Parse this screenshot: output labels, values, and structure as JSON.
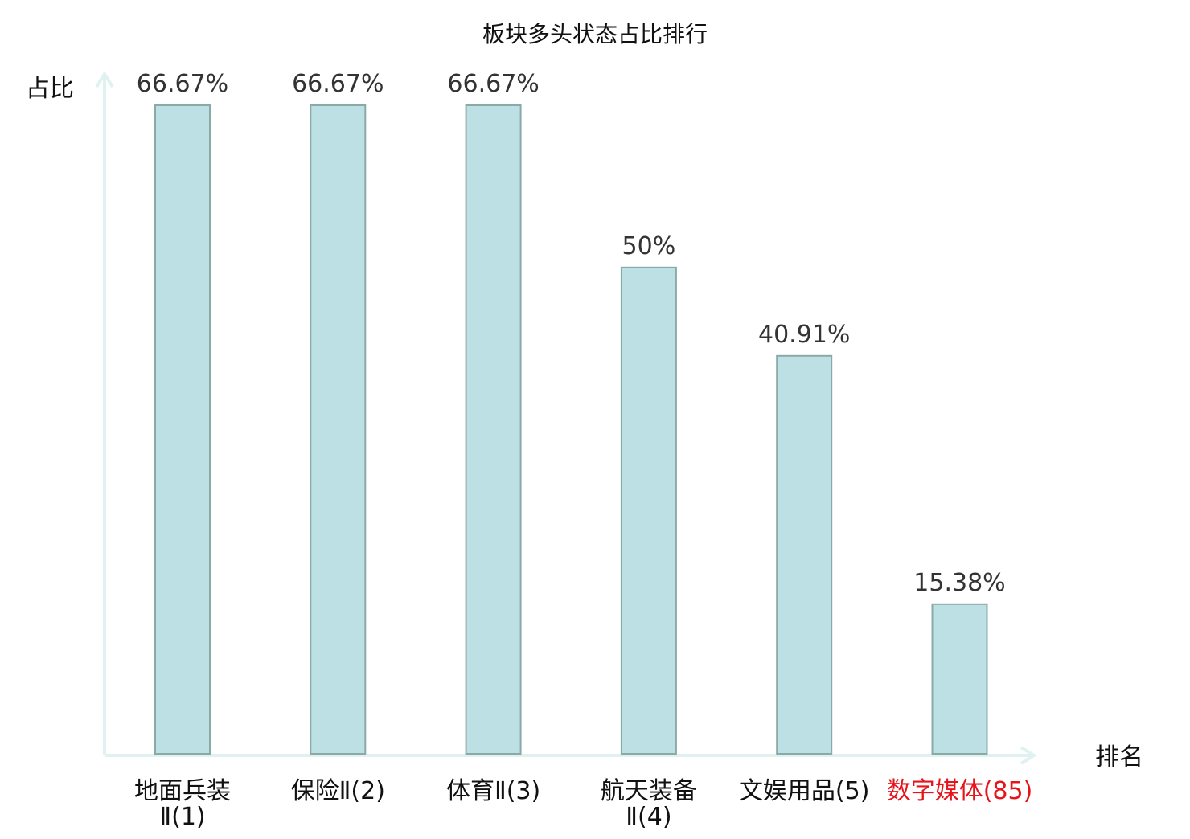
{
  "chart_data": {
    "type": "bar",
    "title": "板块多头状态占比排行",
    "ylabel": "占比",
    "xlabel": "排名",
    "ylim": [
      0,
      66.67
    ],
    "grid": false,
    "legend": "none",
    "categories": [
      {
        "name": "地面兵装",
        "suffix": "Ⅱ(1)",
        "line1": "地面兵装",
        "line2": "Ⅱ(1)",
        "highlight": false
      },
      {
        "name": "保险",
        "suffix": "Ⅱ(2)",
        "line1": "保险Ⅱ(2)",
        "line2": "",
        "highlight": false
      },
      {
        "name": "体育",
        "suffix": "Ⅱ(3)",
        "line1": "体育Ⅱ(3)",
        "line2": "",
        "highlight": false
      },
      {
        "name": "航天装备",
        "suffix": "Ⅱ(4)",
        "line1": "航天装备",
        "line2": "Ⅱ(4)",
        "highlight": false
      },
      {
        "name": "文娱用品",
        "suffix": "(5)",
        "line1": "文娱用品(5)",
        "line2": "",
        "highlight": false
      },
      {
        "name": "数字媒体",
        "suffix": "(85)",
        "line1": "数字媒体(85)",
        "line2": "",
        "highlight": true
      }
    ],
    "values": [
      66.67,
      66.67,
      66.67,
      50,
      40.91,
      15.38
    ],
    "value_labels": [
      "66.67%",
      "66.67%",
      "66.67%",
      "50%",
      "40.91%",
      "15.38%"
    ],
    "colors": {
      "bar_fill": "#bce0e3",
      "bar_stroke": "#8aaaa8",
      "axis": "#e0f2ef",
      "label": "#333333",
      "category_label": "#111111",
      "highlight": "#e8141b"
    }
  }
}
